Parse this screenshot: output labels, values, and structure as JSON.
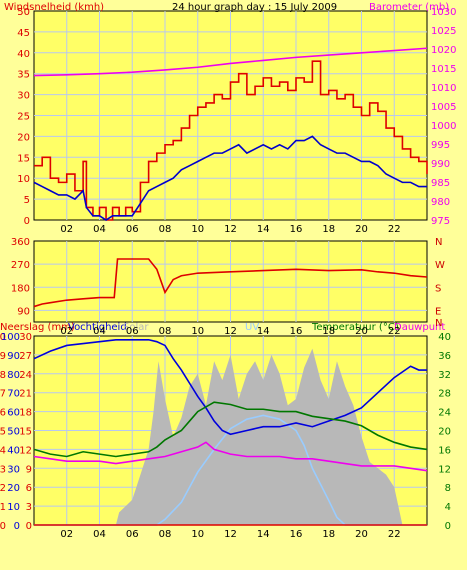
{
  "header": {
    "wind_label": "Windsnelheid (kmh)",
    "title": "24 hour graph day : 15 July 2009",
    "baro_label": "Barometer (mb)"
  },
  "colors": {
    "background": "#ffff99",
    "plot_bg": "#ffff66",
    "grid": "#b8c8f0",
    "wind": "#dd0000",
    "gust_avg": "#0000cc",
    "barometer": "#ee00ee",
    "direction": "#dd0000",
    "humidity": "#0000dd",
    "temperature": "#007700",
    "dewpoint": "#ee00ee",
    "solar": "#b8b8b8",
    "uv": "#99ccff",
    "rain": "#dd0000",
    "left_axis": "#dd0000",
    "right_axis_mid": "#cc0000",
    "temp_axis": "#007700"
  },
  "bottom_labels": {
    "rain": "Neerslag (mm)",
    "humidity": "Vochtigheid",
    "solar": "Solar",
    "uv": "UV",
    "temperature": "Temperatuur (°C)",
    "dewpoint": "Dauwpunt"
  },
  "chart_data": [
    {
      "type": "line",
      "title": "24 hour graph day : 15 July 2009",
      "ylabel": "Windsnelheid (kmh)",
      "y2label": "Barometer (mb)",
      "x_ticks": [
        "02",
        "04",
        "06",
        "08",
        "10",
        "12",
        "14",
        "16",
        "18",
        "20",
        "22"
      ],
      "ylim": [
        0,
        50
      ],
      "y_ticks": [
        0,
        5,
        10,
        15,
        20,
        25,
        30,
        35,
        40,
        45,
        50
      ],
      "y2lim": [
        975,
        1030
      ],
      "y2_ticks": [
        975,
        980,
        985,
        990,
        995,
        1000,
        1005,
        1010,
        1015,
        1020,
        1025,
        1030
      ],
      "x_range_hours": [
        0,
        24
      ],
      "series": [
        {
          "key": "wind_max",
          "x": [
            0,
            0.5,
            1,
            1.5,
            2,
            2.5,
            3,
            3.2,
            3.6,
            4,
            4.4,
            4.8,
            5.2,
            5.6,
            6,
            6.5,
            7,
            7.5,
            8,
            8.5,
            9,
            9.5,
            10,
            10.5,
            11,
            11.5,
            12,
            12.5,
            13,
            13.5,
            14,
            14.5,
            15,
            15.5,
            16,
            16.5,
            17,
            17.5,
            18,
            18.5,
            19,
            19.5,
            20,
            20.5,
            21,
            21.5,
            22,
            22.5,
            23,
            23.5,
            24
          ],
          "values": [
            13,
            15,
            10,
            9,
            11,
            7,
            14,
            3,
            1,
            3,
            0,
            3,
            1,
            3,
            2,
            9,
            14,
            16,
            18,
            19,
            22,
            25,
            27,
            28,
            30,
            29,
            33,
            35,
            30,
            32,
            34,
            32,
            33,
            31,
            34,
            33,
            38,
            30,
            31,
            29,
            30,
            27,
            25,
            28,
            26,
            22,
            20,
            17,
            15,
            14,
            11
          ]
        },
        {
          "key": "wind_avg",
          "x": [
            0,
            0.5,
            1,
            1.5,
            2,
            2.5,
            3,
            3.2,
            3.6,
            4,
            4.4,
            4.8,
            5.2,
            5.6,
            6,
            6.5,
            7,
            7.5,
            8,
            8.5,
            9,
            9.5,
            10,
            10.5,
            11,
            11.5,
            12,
            12.5,
            13,
            13.5,
            14,
            14.5,
            15,
            15.5,
            16,
            16.5,
            17,
            17.5,
            18,
            18.5,
            19,
            19.5,
            20,
            20.5,
            21,
            21.5,
            22,
            22.5,
            23,
            23.5,
            24
          ],
          "values": [
            9,
            8,
            7,
            6,
            6,
            5,
            7,
            3,
            1,
            1,
            0,
            1,
            1,
            1,
            1,
            4,
            7,
            8,
            9,
            10,
            12,
            13,
            14,
            15,
            16,
            16,
            17,
            18,
            16,
            17,
            18,
            17,
            18,
            17,
            19,
            19,
            20,
            18,
            17,
            16,
            16,
            15,
            14,
            14,
            13,
            11,
            10,
            9,
            9,
            8,
            8
          ]
        },
        {
          "key": "barometer",
          "x": [
            0,
            2,
            4,
            6,
            8,
            10,
            12,
            14,
            16,
            18,
            20,
            22,
            24
          ],
          "values": [
            1013,
            1013.2,
            1013.5,
            1013.9,
            1014.5,
            1015.2,
            1016.2,
            1017,
            1017.8,
            1018.4,
            1019,
            1019.6,
            1020.2
          ]
        }
      ]
    },
    {
      "type": "line",
      "ylabel": "Wind direction (degrees)",
      "y_ticks": [
        90,
        180,
        270,
        360
      ],
      "ylim": [
        45,
        360
      ],
      "compass_labels": [
        "N",
        "W",
        "S",
        "E",
        "N"
      ],
      "x_ticks": [
        "02",
        "04",
        "06",
        "08",
        "10",
        "12",
        "14",
        "16",
        "18",
        "20",
        "22"
      ],
      "series": [
        {
          "key": "direction",
          "x": [
            0,
            0.5,
            1,
            2,
            3,
            4,
            4.9,
            5.1,
            6,
            7,
            7.5,
            8,
            8.5,
            9,
            10,
            12,
            14,
            16,
            18,
            20,
            21,
            22,
            23,
            24
          ],
          "values": [
            105,
            115,
            120,
            130,
            135,
            140,
            140,
            290,
            290,
            290,
            250,
            160,
            210,
            225,
            235,
            240,
            245,
            250,
            245,
            248,
            240,
            235,
            225,
            220
          ]
        }
      ]
    },
    {
      "type": "area",
      "y_left_ticks_rain": [
        0,
        1,
        2,
        3,
        4,
        5,
        6,
        7,
        8,
        9,
        10
      ],
      "y_left_ticks_humidity": [
        0,
        10,
        20,
        30,
        40,
        50,
        60,
        70,
        80,
        90,
        100
      ],
      "y_left_ticks_solar": [
        0,
        3,
        6,
        9,
        12,
        15,
        18,
        21,
        24,
        27,
        30
      ],
      "ylim_left": [
        0,
        100
      ],
      "y_right_ticks": [
        0,
        4,
        8,
        12,
        16,
        20,
        24,
        28,
        32,
        36,
        40
      ],
      "ylim_right": [
        0,
        40
      ],
      "x_ticks": [
        "02",
        "04",
        "06",
        "08",
        "10",
        "12",
        "14",
        "16",
        "18",
        "20",
        "22"
      ],
      "series": [
        {
          "key": "humidity",
          "x": [
            0,
            1,
            2,
            3,
            4,
            5,
            6,
            7,
            7.5,
            8,
            8.5,
            9,
            9.5,
            10,
            10.5,
            11,
            11.5,
            12,
            13,
            14,
            15,
            16,
            17,
            18,
            19,
            20,
            21,
            22,
            23,
            23.5,
            24
          ],
          "values": [
            88,
            92,
            95,
            96,
            97,
            98,
            98,
            98,
            97,
            95,
            88,
            82,
            75,
            68,
            62,
            55,
            50,
            48,
            50,
            52,
            52,
            54,
            52,
            55,
            58,
            62,
            70,
            78,
            84,
            82,
            82
          ]
        },
        {
          "key": "temperature",
          "x": [
            0,
            1,
            2,
            3,
            4,
            5,
            6,
            7,
            7.5,
            8,
            8.5,
            9,
            9.5,
            10,
            11,
            12,
            13,
            14,
            15,
            16,
            17,
            18,
            19,
            20,
            21,
            22,
            23,
            24
          ],
          "values": [
            16,
            15,
            14.5,
            15.5,
            15,
            14.5,
            15,
            15.5,
            16.5,
            18,
            19,
            20,
            22,
            24,
            26,
            25.5,
            24.5,
            24.5,
            24,
            24,
            23,
            22.5,
            22,
            21,
            19,
            17.5,
            16.5,
            16
          ]
        },
        {
          "key": "dewpoint",
          "x": [
            0,
            1,
            2,
            3,
            4,
            5,
            6,
            7,
            8,
            9,
            10,
            10.5,
            11,
            12,
            13,
            14,
            15,
            16,
            17,
            18,
            19,
            20,
            21,
            22,
            23,
            24
          ],
          "values": [
            14.5,
            14,
            13.5,
            13.5,
            13.5,
            13,
            13.5,
            14,
            14.5,
            15.5,
            16.5,
            17.5,
            16,
            15,
            14.5,
            14.5,
            14.5,
            14,
            14,
            13.5,
            13,
            12.5,
            12.5,
            12.5,
            12,
            11.5
          ]
        },
        {
          "key": "solar",
          "x": [
            0,
            5,
            5.2,
            6,
            6.5,
            7,
            7.3,
            7.6,
            8,
            8.5,
            9,
            9.5,
            10,
            10.5,
            11,
            11.5,
            12,
            12.5,
            13,
            13.5,
            14,
            14.5,
            15,
            15.5,
            16,
            16.5,
            17,
            17.5,
            18,
            18.5,
            19,
            19.5,
            20,
            20.5,
            21,
            21.5,
            22,
            22.5,
            24
          ],
          "values": [
            0,
            0,
            2,
            4,
            8,
            12,
            18,
            26,
            20,
            14,
            17,
            22,
            24,
            19,
            26,
            23,
            27,
            20,
            24,
            26,
            23,
            27,
            24,
            19,
            20,
            25,
            28,
            23,
            20,
            26,
            22,
            19,
            14,
            10,
            9,
            8,
            6,
            0,
            0
          ]
        },
        {
          "key": "uv",
          "x": [
            0,
            7.5,
            8,
            9,
            10,
            11,
            12,
            13,
            14,
            15,
            16,
            16.5,
            17,
            18,
            18.5,
            19,
            24
          ],
          "values": [
            0,
            0,
            0.3,
            1.2,
            2.8,
            4.0,
            5.1,
            5.6,
            5.8,
            5.6,
            5.0,
            4.2,
            3.0,
            1.3,
            0.4,
            0,
            0
          ]
        },
        {
          "key": "rain",
          "x": [
            0,
            24
          ],
          "values": [
            0,
            0
          ]
        }
      ]
    }
  ]
}
